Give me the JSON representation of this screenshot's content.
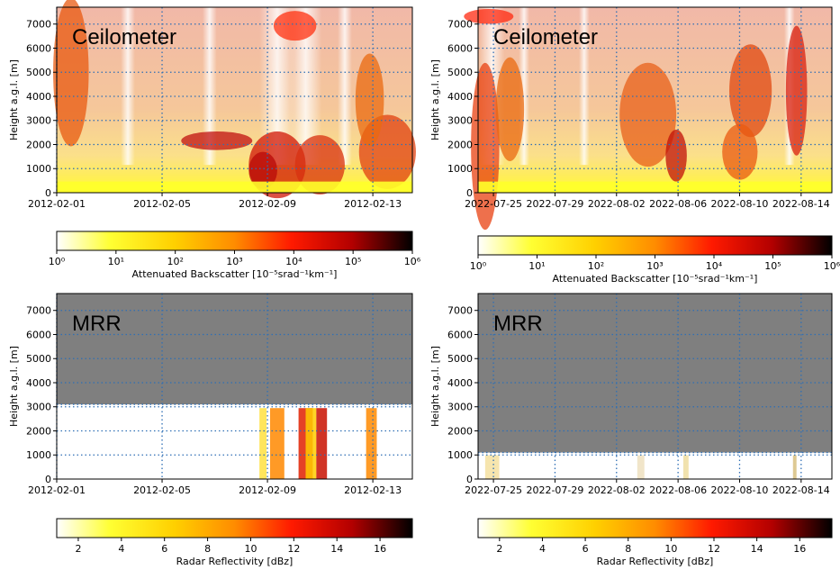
{
  "chart_data": [
    {
      "type": "heatmap",
      "panel_label": "Ceilometer",
      "ylabel": "Height a.g.l. [m]",
      "ylim": [
        0,
        7700
      ],
      "yticks": [
        0,
        1000,
        2000,
        3000,
        4000,
        5000,
        6000,
        7000
      ],
      "xlim": [
        "2012-02-01",
        "2012-02-14 12:00"
      ],
      "xticks": [
        "2012-02-01",
        "2012-02-05",
        "2012-02-09",
        "2012-02-13"
      ],
      "grid": true,
      "colorbar": {
        "label": "Attenuated Backscatter [10⁻⁵srad⁻¹km⁻¹]",
        "scale": "log",
        "range": [
          1,
          1000000
        ],
        "ticks": [
          "10⁰",
          "10¹",
          "10²",
          "10³",
          "10⁴",
          "10⁵",
          "10⁶"
        ]
      }
    },
    {
      "type": "heatmap",
      "panel_label": "Ceilometer",
      "ylabel": "Height a.g.l. [m]",
      "ylim": [
        0,
        7700
      ],
      "yticks": [
        0,
        1000,
        2000,
        3000,
        4000,
        5000,
        6000,
        7000
      ],
      "xlim": [
        "2022-07-24",
        "2022-08-16"
      ],
      "xticks": [
        "2022-07-25",
        "2022-07-29",
        "2022-08-02",
        "2022-08-06",
        "2022-08-10",
        "2022-08-14"
      ],
      "grid": true,
      "colorbar": {
        "label": "Attenuated Backscatter [10⁻⁵srad⁻¹km⁻¹]",
        "scale": "log",
        "range": [
          1,
          1000000
        ],
        "ticks": [
          "10⁰",
          "10¹",
          "10²",
          "10³",
          "10⁴",
          "10⁵",
          "10⁶"
        ]
      }
    },
    {
      "type": "heatmap",
      "panel_label": "MRR",
      "ylabel": "Height a.g.l. [m]",
      "ylim": [
        0,
        7700
      ],
      "yticks": [
        0,
        1000,
        2000,
        3000,
        4000,
        5000,
        6000,
        7000
      ],
      "xlim": [
        "2012-02-01",
        "2012-02-14 12:00"
      ],
      "xticks": [
        "2012-02-01",
        "2012-02-05",
        "2012-02-09",
        "2012-02-13"
      ],
      "no_data_above": 3100,
      "grid": true,
      "colorbar": {
        "label": "Radar Reflectivity [dBz]",
        "scale": "linear",
        "range": [
          1,
          17.5
        ],
        "ticks": [
          "2",
          "4",
          "6",
          "8",
          "10",
          "12",
          "14",
          "16"
        ]
      }
    },
    {
      "type": "heatmap",
      "panel_label": "MRR",
      "ylabel": "Height a.g.l. [m]",
      "ylim": [
        0,
        7700
      ],
      "yticks": [
        0,
        1000,
        2000,
        3000,
        4000,
        5000,
        6000,
        7000
      ],
      "xlim": [
        "2022-07-24",
        "2022-08-16"
      ],
      "xticks": [
        "2022-07-25",
        "2022-07-29",
        "2022-08-02",
        "2022-08-06",
        "2022-08-10",
        "2022-08-14"
      ],
      "no_data_above": 1100,
      "grid": true,
      "colorbar": {
        "label": "Radar Reflectivity [dBz]",
        "scale": "linear",
        "range": [
          1,
          17.5
        ],
        "ticks": [
          "2",
          "4",
          "6",
          "8",
          "10",
          "12",
          "14",
          "16"
        ]
      }
    }
  ],
  "colors": {
    "no_data_gray": "#7f7f7f",
    "grid_dotted": "#2f6fb5",
    "colormap": [
      "#ffffff",
      "#ffff33",
      "#ffd000",
      "#ff8c00",
      "#ff1a00",
      "#b30000",
      "#000000"
    ]
  }
}
